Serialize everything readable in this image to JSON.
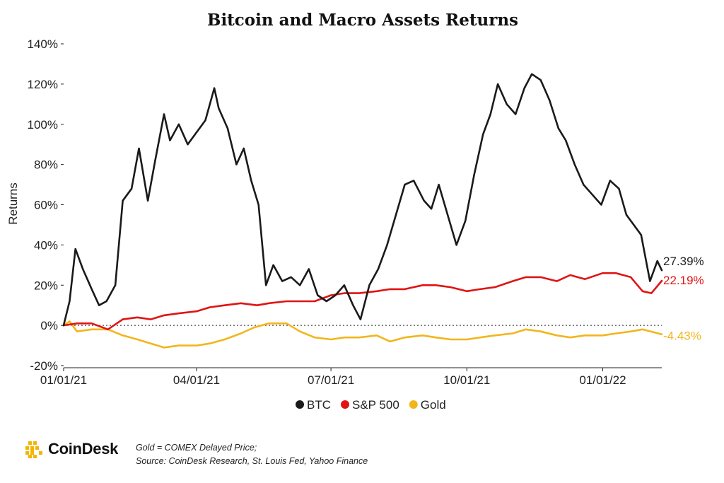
{
  "chart_data": {
    "type": "line",
    "title": "Bitcoin and Macro Assets Returns",
    "ylabel": "Returns",
    "xlabel": "",
    "ylim": [
      -20,
      140
    ],
    "yticks": [
      -20,
      0,
      20,
      40,
      60,
      80,
      100,
      120,
      140
    ],
    "ytick_labels": [
      "-20%",
      "0%",
      "20%",
      "40%",
      "60%",
      "80%",
      "100%",
      "120%",
      "140%"
    ],
    "xticks": [
      "01/01/21",
      "04/01/21",
      "07/01/21",
      "10/01/21",
      "01/01/22"
    ],
    "x_range": [
      "2021-01-01",
      "2022-02-10"
    ],
    "zero_reference_line": "dotted",
    "legend_position": "bottom",
    "legend": [
      "BTC",
      "S&P 500",
      "Gold"
    ],
    "series": [
      {
        "name": "BTC",
        "color": "#1a1a1a",
        "end_label": "27.39%",
        "x": [
          "2021-01-01",
          "2021-01-05",
          "2021-01-09",
          "2021-01-14",
          "2021-01-20",
          "2021-01-25",
          "2021-01-30",
          "2021-02-05",
          "2021-02-10",
          "2021-02-16",
          "2021-02-21",
          "2021-02-27",
          "2021-03-04",
          "2021-03-10",
          "2021-03-14",
          "2021-03-20",
          "2021-03-26",
          "2021-04-01",
          "2021-04-07",
          "2021-04-13",
          "2021-04-16",
          "2021-04-22",
          "2021-04-28",
          "2021-05-03",
          "2021-05-08",
          "2021-05-13",
          "2021-05-18",
          "2021-05-23",
          "2021-05-29",
          "2021-06-04",
          "2021-06-10",
          "2021-06-16",
          "2021-06-22",
          "2021-06-28",
          "2021-07-04",
          "2021-07-10",
          "2021-07-16",
          "2021-07-21",
          "2021-07-27",
          "2021-08-02",
          "2021-08-08",
          "2021-08-14",
          "2021-08-20",
          "2021-08-26",
          "2021-09-02",
          "2021-09-07",
          "2021-09-12",
          "2021-09-18",
          "2021-09-24",
          "2021-09-30",
          "2021-10-06",
          "2021-10-12",
          "2021-10-17",
          "2021-10-22",
          "2021-10-28",
          "2021-11-03",
          "2021-11-09",
          "2021-11-14",
          "2021-11-20",
          "2021-11-26",
          "2021-12-02",
          "2021-12-07",
          "2021-12-13",
          "2021-12-19",
          "2021-12-25",
          "2021-12-31",
          "2022-01-06",
          "2022-01-12",
          "2022-01-17",
          "2022-01-22",
          "2022-01-27",
          "2022-02-02",
          "2022-02-07",
          "2022-02-10"
        ],
        "values": [
          0,
          12,
          38,
          28,
          18,
          10,
          12,
          20,
          62,
          68,
          88,
          62,
          82,
          105,
          92,
          100,
          90,
          96,
          102,
          118,
          108,
          98,
          80,
          88,
          72,
          60,
          20,
          30,
          22,
          24,
          20,
          28,
          15,
          12,
          15,
          20,
          10,
          3,
          20,
          28,
          40,
          55,
          70,
          72,
          62,
          58,
          70,
          55,
          40,
          52,
          75,
          95,
          105,
          120,
          110,
          105,
          118,
          125,
          122,
          112,
          98,
          92,
          80,
          70,
          65,
          60,
          72,
          68,
          55,
          50,
          45,
          22,
          32,
          27.39
        ]
      },
      {
        "name": "S&P 500",
        "color": "#e01414",
        "end_label": "22.19%",
        "x": [
          "2021-01-01",
          "2021-01-10",
          "2021-01-20",
          "2021-01-31",
          "2021-02-10",
          "2021-02-20",
          "2021-03-01",
          "2021-03-10",
          "2021-03-20",
          "2021-04-01",
          "2021-04-10",
          "2021-04-20",
          "2021-05-01",
          "2021-05-12",
          "2021-05-20",
          "2021-06-01",
          "2021-06-10",
          "2021-06-20",
          "2021-07-01",
          "2021-07-10",
          "2021-07-20",
          "2021-08-01",
          "2021-08-10",
          "2021-08-20",
          "2021-09-01",
          "2021-09-10",
          "2021-09-20",
          "2021-10-01",
          "2021-10-10",
          "2021-10-20",
          "2021-11-01",
          "2021-11-10",
          "2021-11-20",
          "2021-12-01",
          "2021-12-10",
          "2021-12-20",
          "2022-01-01",
          "2022-01-10",
          "2022-01-20",
          "2022-01-28",
          "2022-02-03",
          "2022-02-10"
        ],
        "values": [
          0,
          1,
          1,
          -2,
          3,
          4,
          3,
          5,
          6,
          7,
          9,
          10,
          11,
          10,
          11,
          12,
          12,
          12,
          15,
          16,
          16,
          17,
          18,
          18,
          20,
          20,
          19,
          17,
          18,
          19,
          22,
          24,
          24,
          22,
          25,
          23,
          26,
          26,
          24,
          17,
          16,
          22.19
        ]
      },
      {
        "name": "Gold",
        "color": "#f2b51c",
        "end_label": "-4.43%",
        "x": [
          "2021-01-01",
          "2021-01-05",
          "2021-01-10",
          "2021-01-20",
          "2021-01-31",
          "2021-02-10",
          "2021-02-20",
          "2021-03-01",
          "2021-03-10",
          "2021-03-20",
          "2021-04-01",
          "2021-04-10",
          "2021-04-20",
          "2021-05-01",
          "2021-05-10",
          "2021-05-20",
          "2021-06-01",
          "2021-06-10",
          "2021-06-20",
          "2021-07-01",
          "2021-07-10",
          "2021-07-20",
          "2021-08-01",
          "2021-08-10",
          "2021-08-20",
          "2021-09-01",
          "2021-09-10",
          "2021-09-20",
          "2021-10-01",
          "2021-10-10",
          "2021-10-20",
          "2021-11-01",
          "2021-11-10",
          "2021-11-20",
          "2021-12-01",
          "2021-12-10",
          "2021-12-20",
          "2022-01-01",
          "2022-01-10",
          "2022-01-20",
          "2022-01-28",
          "2022-02-10"
        ],
        "values": [
          0,
          2,
          -3,
          -2,
          -2,
          -5,
          -7,
          -9,
          -11,
          -10,
          -10,
          -9,
          -7,
          -4,
          -1,
          1,
          1,
          -3,
          -6,
          -7,
          -6,
          -6,
          -5,
          -8,
          -6,
          -5,
          -6,
          -7,
          -7,
          -6,
          -5,
          -4,
          -2,
          -3,
          -5,
          -6,
          -5,
          -5,
          -4,
          -3,
          -2,
          -4.43
        ]
      }
    ]
  },
  "footer": {
    "logo_text": "CoinDesk",
    "source_line1": "Gold = COMEX Delayed Price;",
    "source_line2": "Source: CoinDesk Research, St. Louis Fed, Yahoo Finance",
    "logo_color": "#f5b400"
  }
}
